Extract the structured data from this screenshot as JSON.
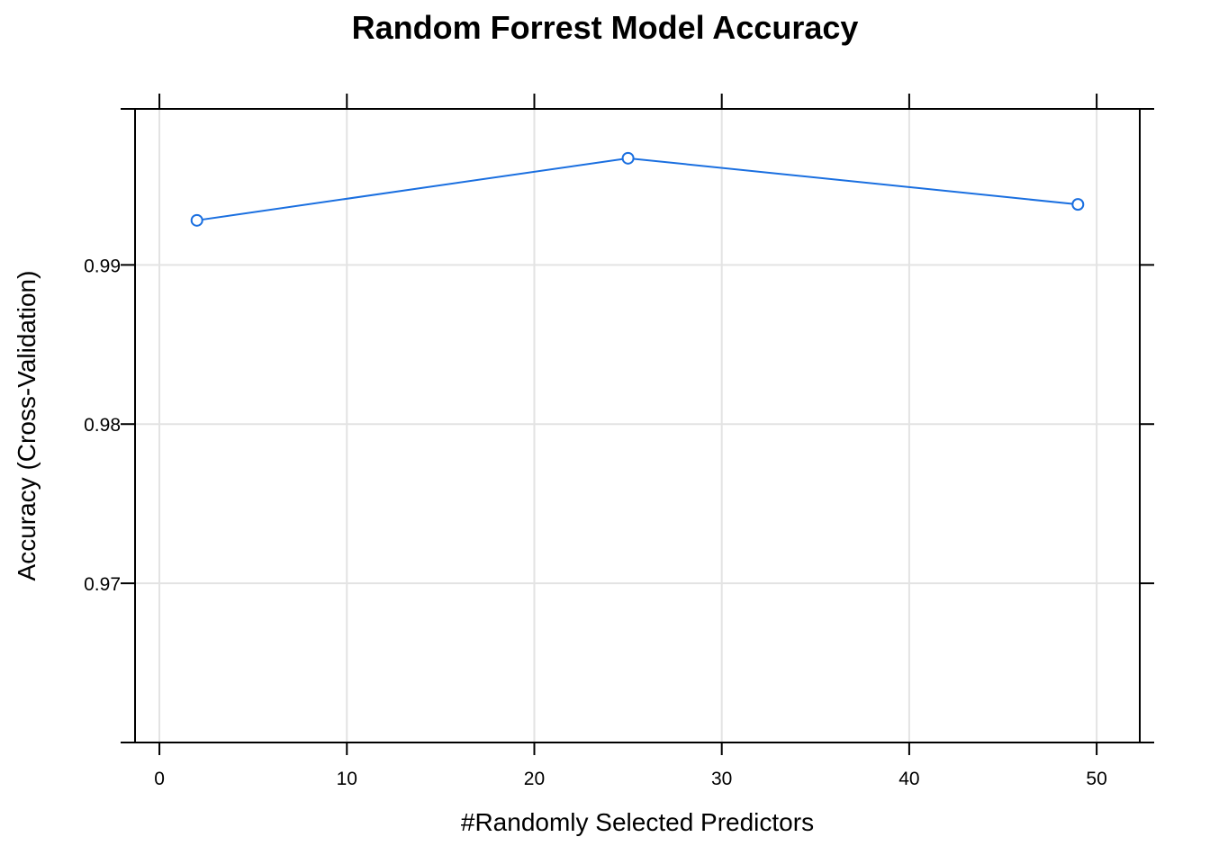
{
  "chart_data": {
    "type": "line",
    "title": "Random Forrest Model Accuracy",
    "xlabel": "#Randomly Selected Predictors",
    "ylabel": "Accuracy (Cross-Validation)",
    "xlim": [
      -1.3,
      52.3
    ],
    "ylim": [
      0.96,
      0.9998
    ],
    "xticks": [
      0,
      10,
      20,
      30,
      40,
      50
    ],
    "xtick_labels": [
      "0",
      "10",
      "20",
      "30",
      "40",
      "50"
    ],
    "yticks": [
      0.97,
      0.98,
      0.99
    ],
    "ytick_labels": [
      "0.97",
      "0.98",
      "0.99"
    ],
    "grid": true,
    "series": [
      {
        "x": [
          2,
          25,
          49
        ],
        "y": [
          0.9928,
          0.9967,
          0.9938
        ],
        "color": "#1a6fe0",
        "marker": "open-circle"
      }
    ]
  }
}
